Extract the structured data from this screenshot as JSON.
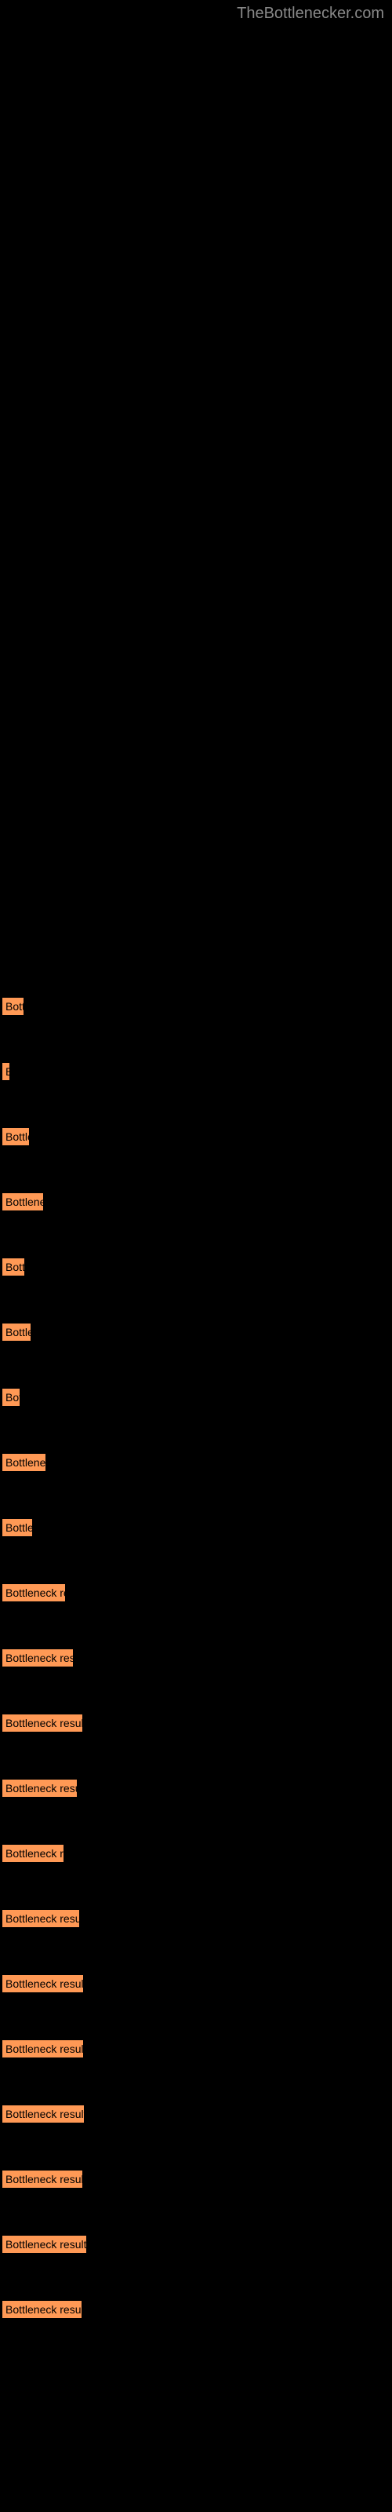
{
  "watermark": "TheBottlenecker.com",
  "chart": {
    "type": "bar",
    "orientation": "horizontal",
    "background_color": "#000000",
    "bar_fill_color": "#ff9955",
    "bar_border_color": "#000000",
    "bar_text_color": "#000000",
    "bar_text_fontsize": 14,
    "watermark_color": "#888888",
    "watermark_fontsize": 20,
    "bars": [
      {
        "label": "Bottleneck result",
        "width": 29,
        "text": "Bottl"
      },
      {
        "label": "Bottleneck result",
        "width": 11,
        "text": "B"
      },
      {
        "label": "Bottleneck result",
        "width": 36,
        "text": "Bottle"
      },
      {
        "label": "Bottleneck result",
        "width": 54,
        "text": "Bottlenec"
      },
      {
        "label": "Bottleneck result",
        "width": 30,
        "text": "Bottle"
      },
      {
        "label": "Bottleneck result",
        "width": 38,
        "text": "Bottlene"
      },
      {
        "label": "Bottleneck result",
        "width": 24,
        "text": "Bott"
      },
      {
        "label": "Bottleneck result",
        "width": 57,
        "text": "Bottleneck"
      },
      {
        "label": "Bottleneck result",
        "width": 40,
        "text": "Bottlen"
      },
      {
        "label": "Bottleneck result",
        "width": 82,
        "text": "Bottleneck res"
      },
      {
        "label": "Bottleneck result",
        "width": 92,
        "text": "Bottleneck resu"
      },
      {
        "label": "Bottleneck result",
        "width": 104,
        "text": "Bottleneck result"
      },
      {
        "label": "Bottleneck result",
        "width": 97,
        "text": "Bottleneck result"
      },
      {
        "label": "Bottleneck result",
        "width": 80,
        "text": "Bottleneck re"
      },
      {
        "label": "Bottleneck result",
        "width": 100,
        "text": "Bottleneck result"
      },
      {
        "label": "Bottleneck result",
        "width": 105,
        "text": "Bottleneck result"
      },
      {
        "label": "Bottleneck result",
        "width": 105,
        "text": "Bottleneck result"
      },
      {
        "label": "Bottleneck result",
        "width": 106,
        "text": "Bottleneck result"
      },
      {
        "label": "Bottleneck result",
        "width": 104,
        "text": "Bottleneck result"
      },
      {
        "label": "Bottleneck result",
        "width": 109,
        "text": "Bottleneck result"
      },
      {
        "label": "Bottleneck result",
        "width": 103,
        "text": "Bottleneck result"
      }
    ]
  }
}
